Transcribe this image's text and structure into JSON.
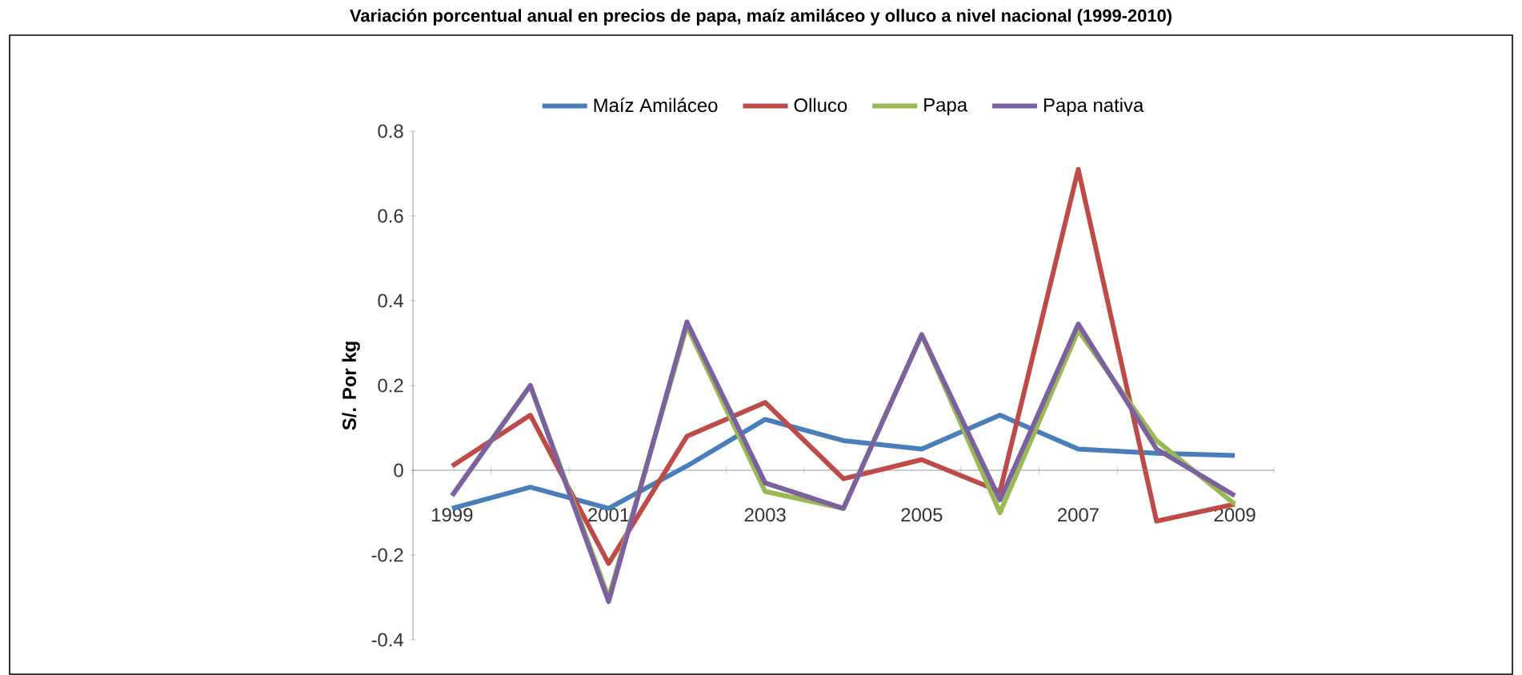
{
  "chart_data": {
    "type": "line",
    "title": "Variación porcentual anual en precios de papa, maíz amiláceo y olluco a nivel nacional (1999-2010)",
    "ylabel": "S/. Por kg",
    "categories": [
      "1999",
      null,
      "2001",
      null,
      "2003",
      null,
      "2005",
      null,
      "2007",
      null,
      "2009"
    ],
    "series": [
      {
        "name": "Maíz Amiláceo",
        "color": "#4a7ebb",
        "values": [
          -0.09,
          -0.04,
          -0.09,
          0.01,
          0.12,
          0.07,
          0.05,
          0.13,
          0.05,
          0.04,
          0.035
        ]
      },
      {
        "name": "Olluco",
        "color": "#be4b48",
        "values": [
          0.01,
          0.13,
          -0.22,
          0.08,
          0.16,
          -0.02,
          0.025,
          -0.05,
          0.71,
          -0.12,
          -0.08
        ]
      },
      {
        "name": "Papa",
        "color": "#98b954",
        "values": [
          -0.06,
          0.2,
          -0.3,
          0.34,
          -0.05,
          -0.09,
          0.32,
          -0.1,
          0.33,
          0.07,
          -0.08
        ]
      },
      {
        "name": "Papa nativa",
        "color": "#7d60a0",
        "values": [
          -0.06,
          0.2,
          -0.31,
          0.35,
          -0.03,
          -0.09,
          0.32,
          -0.07,
          0.345,
          0.05,
          -0.06
        ]
      }
    ],
    "ylim": [
      -0.4,
      0.8
    ],
    "yticks": [
      -0.4,
      -0.2,
      0,
      0.2,
      0.4,
      0.6,
      0.8
    ],
    "legend": "top",
    "grid": false,
    "marker": "none",
    "line_style": "solid"
  }
}
